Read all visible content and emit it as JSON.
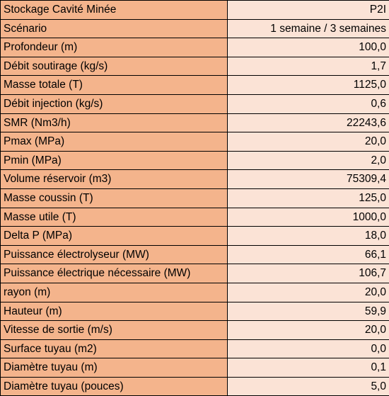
{
  "sheet": {
    "title_label": "Stockage Cavité Minée",
    "title_value": "P2I",
    "rows": [
      {
        "label": "Scénario",
        "value": "1 semaine / 3 semaines"
      },
      {
        "label": "Profondeur (m)",
        "value": "100,0"
      },
      {
        "label": "Débit soutirage (kg/s)",
        "value": "1,7"
      },
      {
        "label": "Masse totale (T)",
        "value": "1125,0"
      },
      {
        "label": "Débit injection (kg/s)",
        "value": "0,6"
      },
      {
        "label": "SMR (Nm3/h)",
        "value": "22243,6"
      },
      {
        "label": "Pmax (MPa)",
        "value": "20,0"
      },
      {
        "label": "Pmin (MPa)",
        "value": "2,0"
      },
      {
        "label": "Volume réservoir (m3)",
        "value": "75309,4"
      },
      {
        "label": "Masse coussin (T)",
        "value": "125,0"
      },
      {
        "label": "Masse utile (T)",
        "value": "1000,0"
      },
      {
        "label": "Delta P (MPa)",
        "value": "18,0"
      },
      {
        "label": "Puissance électrolyseur (MW)",
        "value": "66,1"
      },
      {
        "label": "Puissance électrique nécessaire (MW)",
        "value": "106,7"
      },
      {
        "label": "rayon (m)",
        "value": "20,0"
      },
      {
        "label": "Hauteur (m)",
        "value": "59,9"
      },
      {
        "label": "Vitesse de sortie (m/s)",
        "value": "20,0"
      },
      {
        "label": "Surface tuyau (m2)",
        "value": "0,0"
      },
      {
        "label": "Diamètre tuyau (m)",
        "value": "0,1"
      },
      {
        "label": "Diamètre tuyau (pouces)",
        "value": "5,0"
      }
    ],
    "colors": {
      "label_fill": "#f4b48c",
      "value_fill": "#fbe3d6",
      "border": "#000000"
    }
  }
}
